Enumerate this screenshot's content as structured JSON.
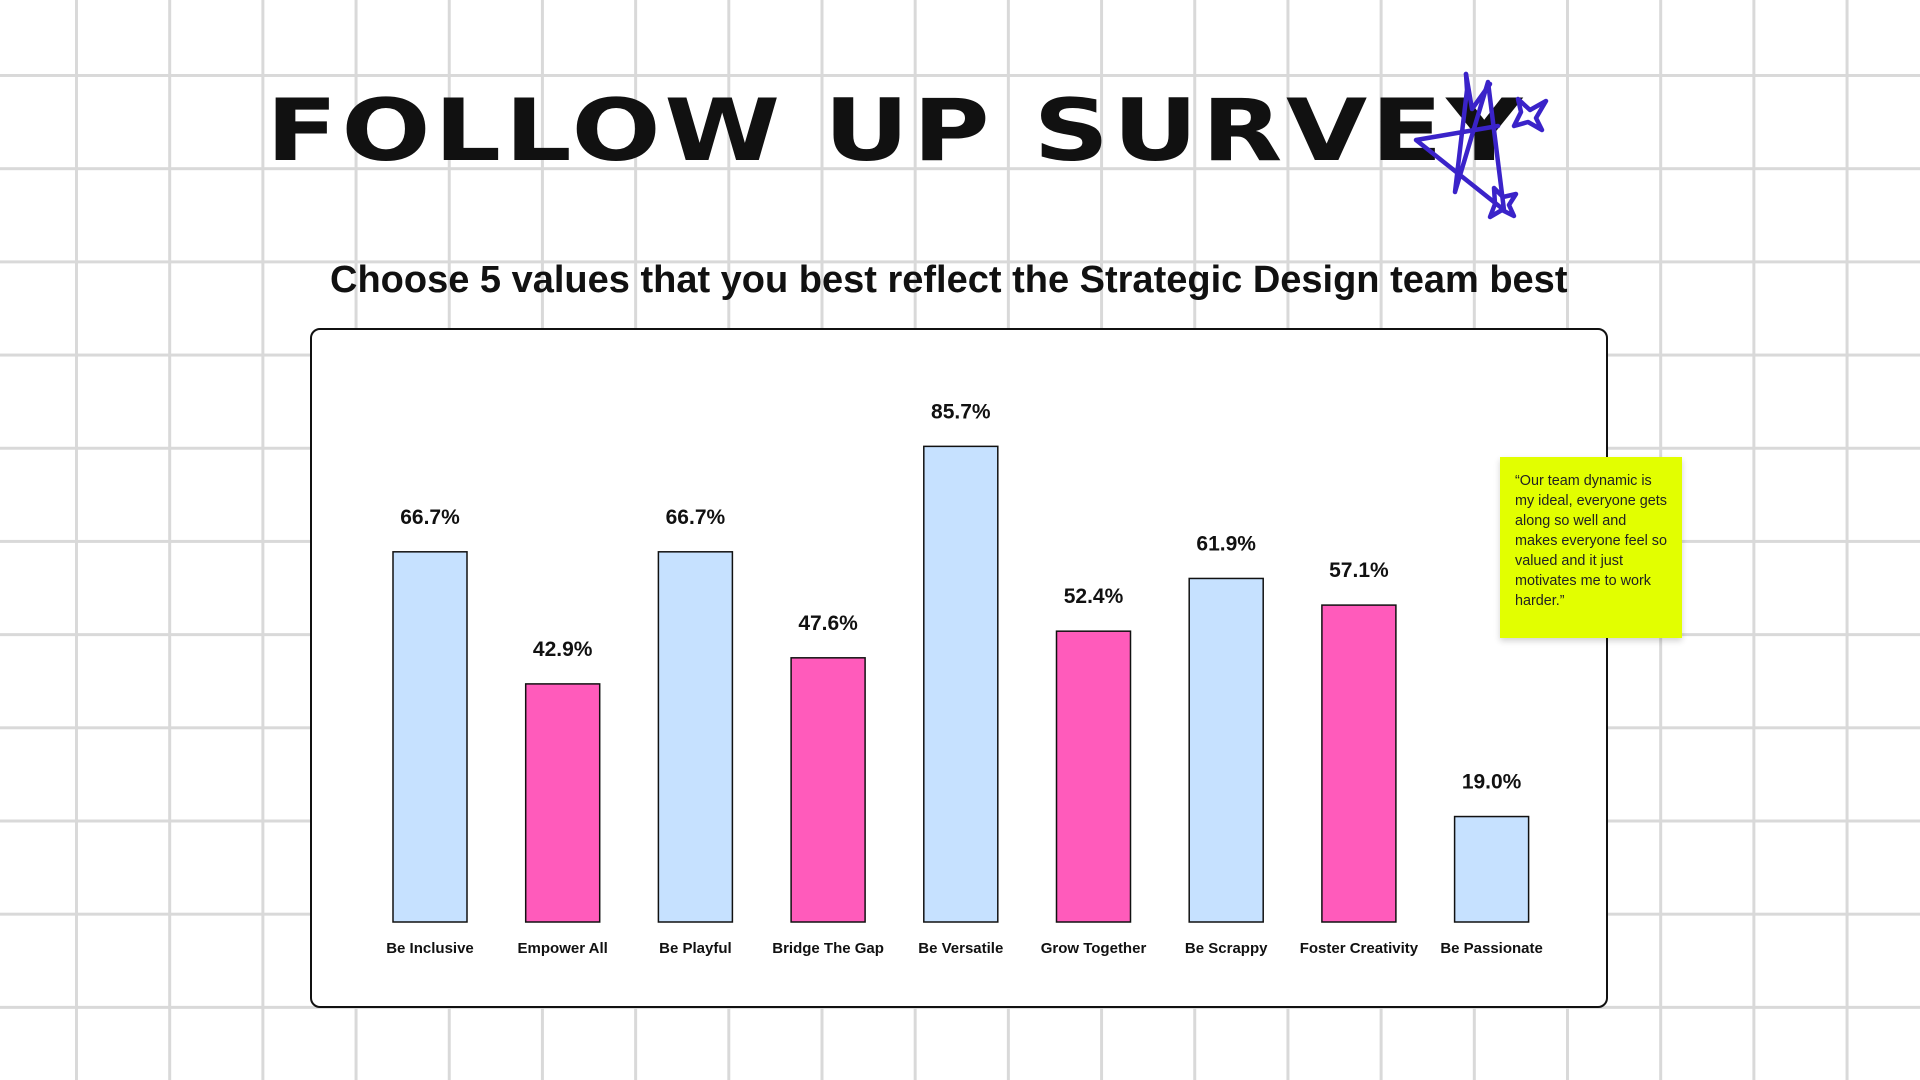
{
  "header": {
    "title": "FOLLOW UP SURVEY",
    "subtitle": "Choose 5 values that you best reflect the Strategic Design team best"
  },
  "decoration": {
    "icon": "hand-drawn-stars-icon",
    "color": "#3a23c9"
  },
  "sticky_note": {
    "text": "“Our team dynamic is my ideal, everyone gets along so well and makes everyone feel so valued and it just motivates me to work harder.”",
    "color": "#e2ff00"
  },
  "chart_data": {
    "type": "bar",
    "title": "",
    "xlabel": "",
    "ylabel": "",
    "categories": [
      "Be Inclusive",
      "Empower All",
      "Be Playful",
      "Bridge The Gap",
      "Be Versatile",
      "Grow Together",
      "Be Scrappy",
      "Foster Creativity",
      "Be Passionate"
    ],
    "values": [
      66.7,
      42.9,
      66.7,
      47.6,
      85.7,
      52.4,
      61.9,
      57.1,
      19.0
    ],
    "value_labels": [
      "66.7%",
      "42.9%",
      "66.7%",
      "47.6%",
      "85.7%",
      "52.4%",
      "61.9%",
      "57.1%",
      "19.0%"
    ],
    "bar_colors": [
      "#c6e1ff",
      "#ff5bbb",
      "#c6e1ff",
      "#ff5bbb",
      "#c6e1ff",
      "#ff5bbb",
      "#c6e1ff",
      "#ff5bbb",
      "#c6e1ff"
    ],
    "ylim": [
      0,
      100
    ],
    "grid": false,
    "legend": "none"
  }
}
